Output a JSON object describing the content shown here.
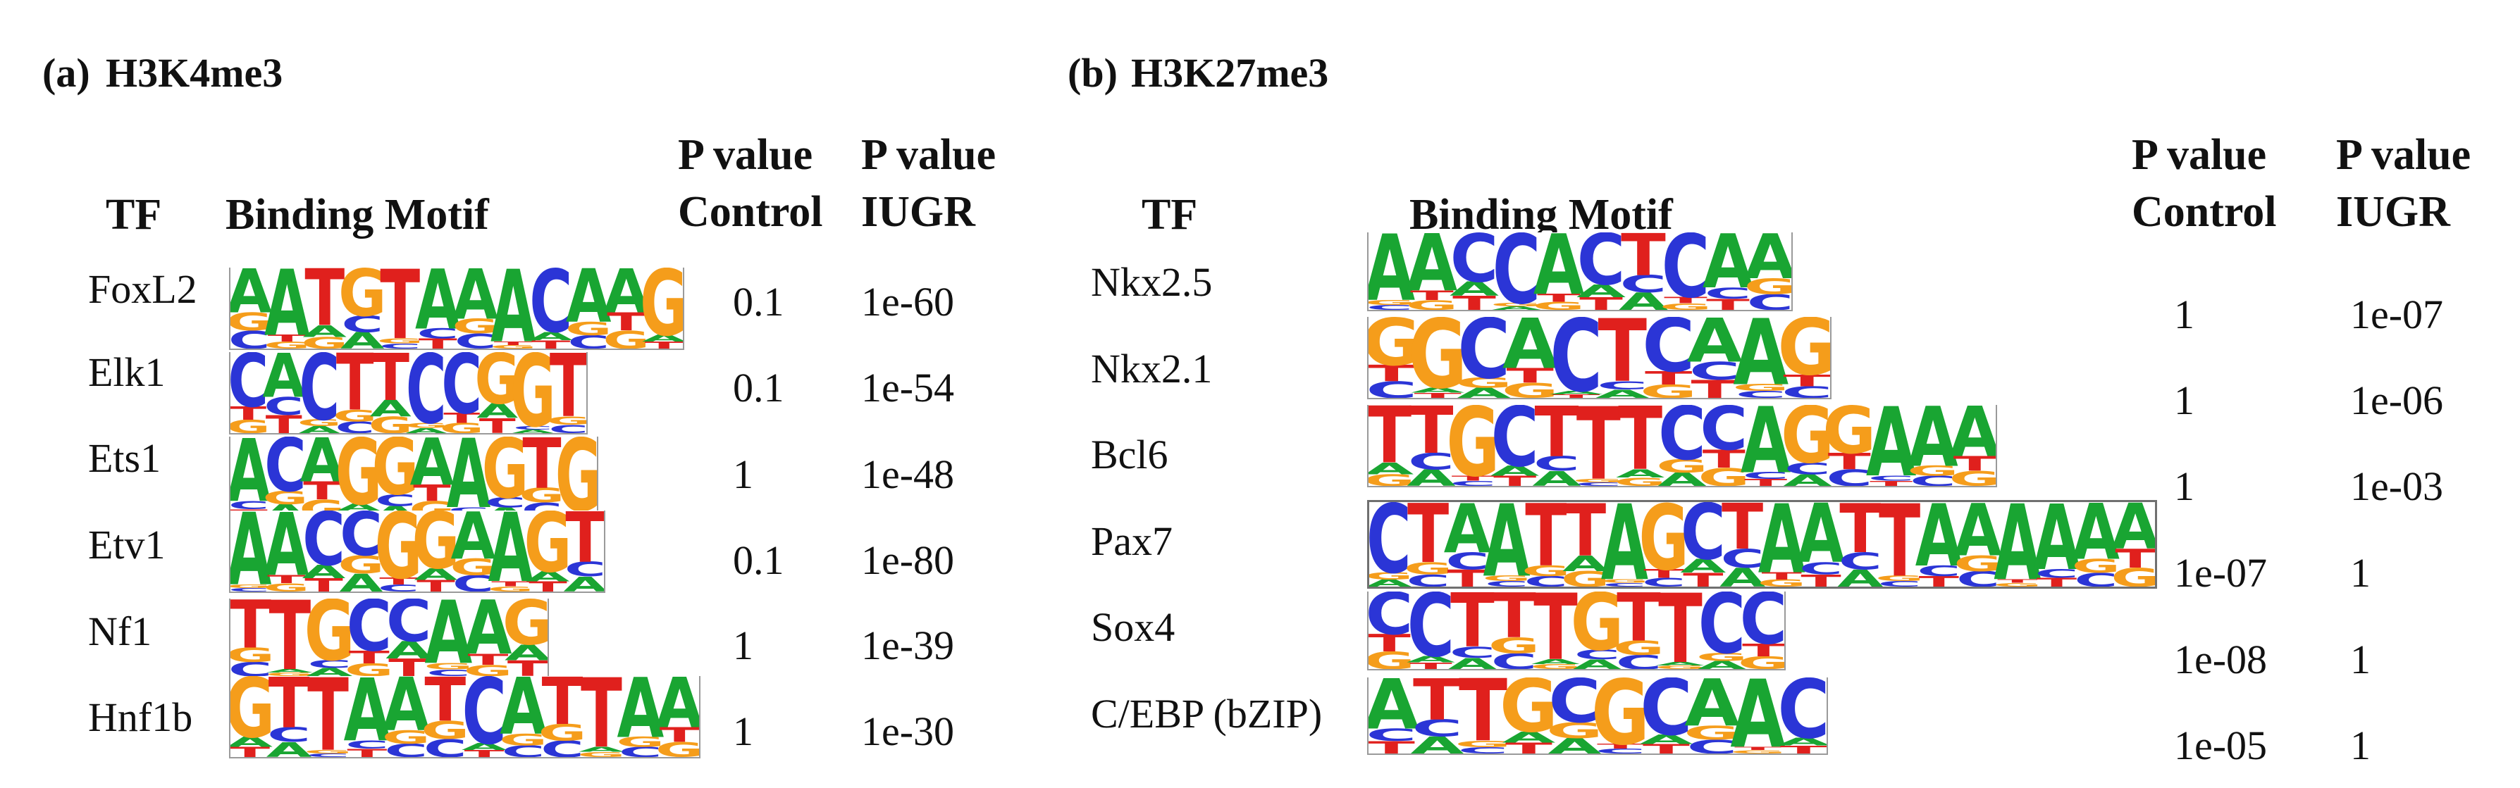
{
  "colors": {
    "A": "#19a532",
    "C": "#2b35d6",
    "G": "#f59d1b",
    "T": "#e0201d"
  },
  "panel_a": {
    "label": "(a)",
    "title": "H3K4me3",
    "headers": {
      "tf": "TF",
      "motif": "Binding Motif",
      "pcontrol": "P value\nControl",
      "piugr": "P value\nIUGR"
    },
    "rows": [
      {
        "tf": "FoxL2",
        "motif_seq": "AATGTAAACAAG",
        "p_control": "0.1",
        "p_iugr": "1e-60"
      },
      {
        "tf": "Elk1",
        "motif_seq": "CACTTCCGGT",
        "p_control": "0.1",
        "p_iugr": "1e-54"
      },
      {
        "tf": "Ets1",
        "motif_seq": "ACAGGAAGTG",
        "p_control": "1",
        "p_iugr": "1e-48"
      },
      {
        "tf": "Etv1",
        "motif_seq": "AACCGGAAGT",
        "p_control": "0.1",
        "p_iugr": "1e-80"
      },
      {
        "tf": "Nf1",
        "motif_seq": "TTGCCAAG",
        "p_control": "1",
        "p_iugr": "1e-39"
      },
      {
        "tf": "Hnf1b",
        "motif_seq": "GTTAATCATTAA",
        "p_control": "1",
        "p_iugr": "1e-30"
      }
    ]
  },
  "panel_b": {
    "label": "(b)",
    "title": "H3K27me3",
    "headers": {
      "tf": "TF",
      "motif": "Binding Motif",
      "pcontrol": "P value\nControl",
      "piugr": "P value\nIUGR"
    },
    "rows": [
      {
        "tf": "Nkx2.5",
        "motif_seq": "AACCACTCAA",
        "p_control": "1",
        "p_iugr": "1e-07"
      },
      {
        "tf": "Nkx2.1",
        "motif_seq": "GGCACTCAAG",
        "p_control": "1",
        "p_iugr": "1e-06"
      },
      {
        "tf": "Bcl6",
        "motif_seq": "TTGCTTTCCAGGAAA",
        "p_control": "1",
        "p_iugr": "1e-03"
      },
      {
        "tf": "Pax7",
        "motif_seq": "CTAATTAGCTAATTAAAAAA",
        "p_control": "1e-07",
        "p_iugr": "1"
      },
      {
        "tf": "Sox4",
        "motif_seq": "CCTTTGTTCC",
        "p_control": "1e-08",
        "p_iugr": "1"
      },
      {
        "tf": "C/EBP (bZIP)",
        "motif_seq": "ATTGCGCAAC",
        "p_control": "1e-05",
        "p_iugr": "1"
      }
    ]
  }
}
